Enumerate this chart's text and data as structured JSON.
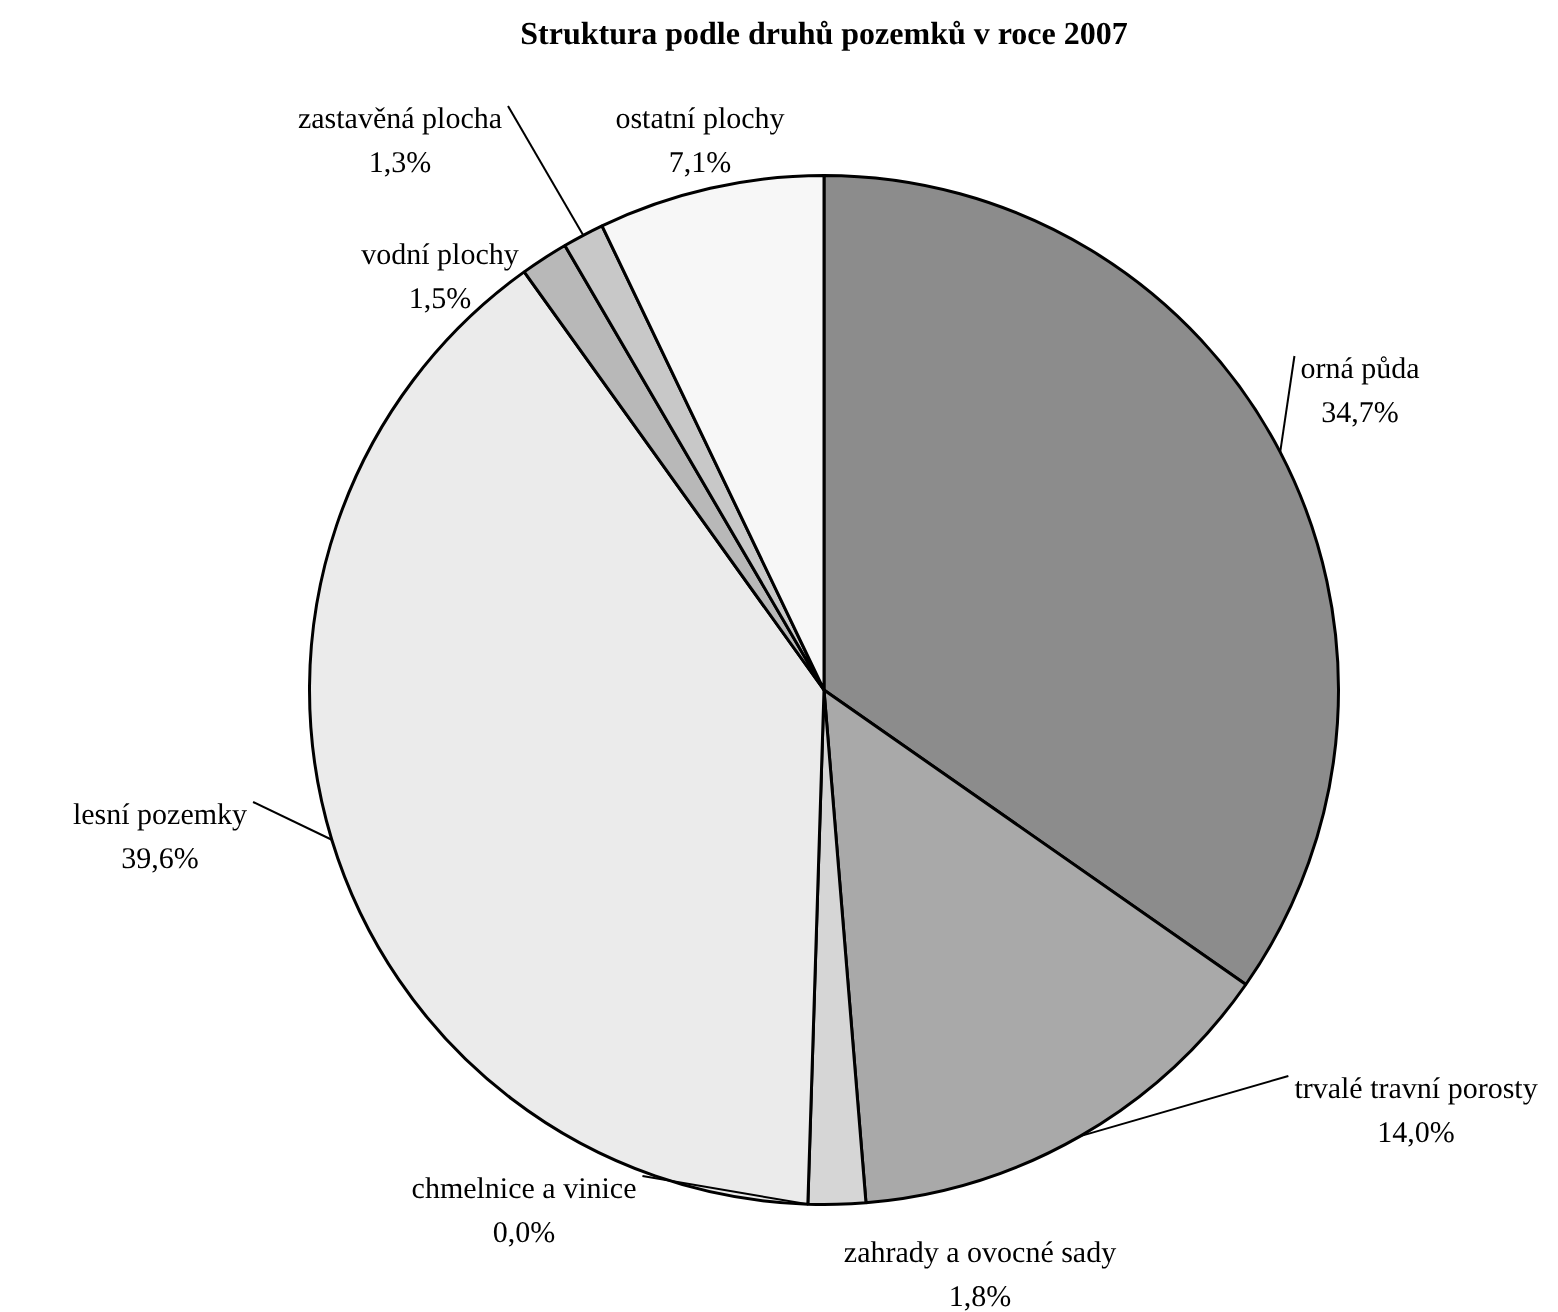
{
  "chart_data": {
    "type": "pie",
    "title": "Struktura podle druhů pozemků v roce 2007",
    "categories": [
      "orná půda",
      "trvalé travní porosty",
      "zahrady a ovocné sady",
      "chmelnice a vinice",
      "lesní pozemky",
      "vodní plochy",
      "zastavěná plocha",
      "ostatní plochy"
    ],
    "values": [
      34.7,
      14.0,
      1.8,
      0.0,
      39.6,
      1.5,
      1.3,
      7.1
    ],
    "value_labels": [
      "34,7%",
      "14,0%",
      "1,8%",
      "0,0%",
      "39,6%",
      "1,5%",
      "1,3%",
      "7,1%"
    ],
    "colors": [
      "#8c8c8c",
      "#a9a9a9",
      "#d6d6d6",
      "#ffffff",
      "#ebebeb",
      "#b8b8b8",
      "#c8c8c8",
      "#f7f7f7"
    ]
  }
}
